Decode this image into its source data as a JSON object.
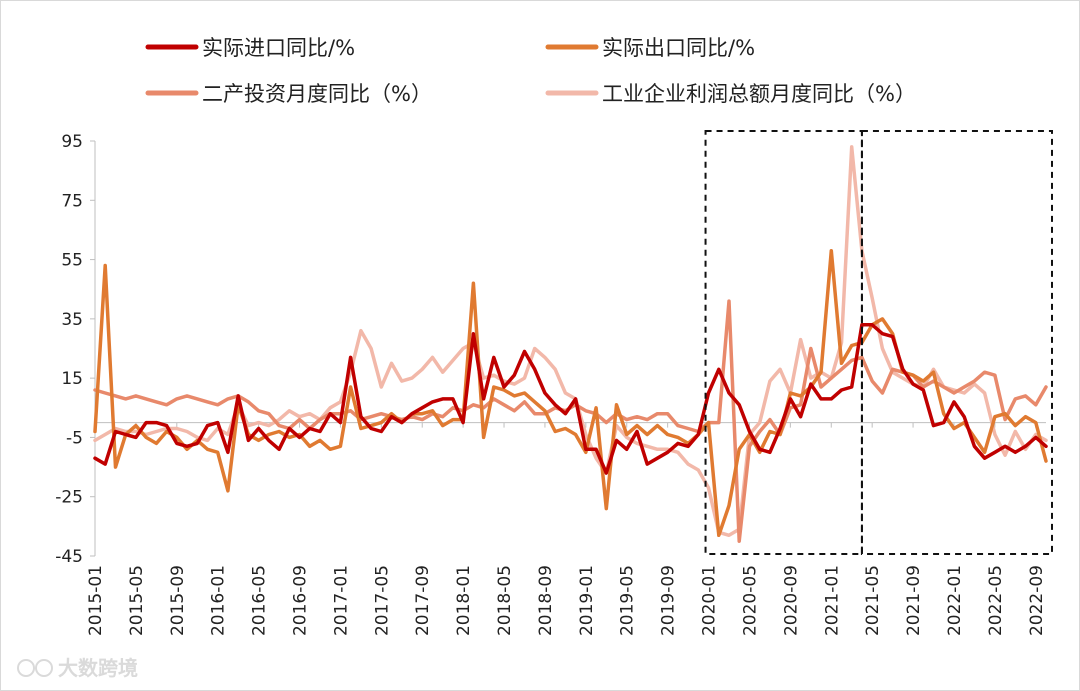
{
  "chart_data": {
    "type": "line",
    "title": "",
    "xlabel": "",
    "ylabel": "",
    "ylim": [
      -45,
      95
    ],
    "yticks": [
      95,
      75,
      55,
      35,
      15,
      -5,
      -25,
      -45
    ],
    "grid": false,
    "legend_position": "top",
    "categories": [
      "2015-01",
      "2015-02",
      "2015-03",
      "2015-04",
      "2015-05",
      "2015-06",
      "2015-07",
      "2015-08",
      "2015-09",
      "2015-10",
      "2015-11",
      "2015-12",
      "2016-01",
      "2016-02",
      "2016-03",
      "2016-04",
      "2016-05",
      "2016-06",
      "2016-07",
      "2016-08",
      "2016-09",
      "2016-10",
      "2016-11",
      "2016-12",
      "2017-01",
      "2017-02",
      "2017-03",
      "2017-04",
      "2017-05",
      "2017-06",
      "2017-07",
      "2017-08",
      "2017-09",
      "2017-10",
      "2017-11",
      "2017-12",
      "2018-01",
      "2018-02",
      "2018-03",
      "2018-04",
      "2018-05",
      "2018-06",
      "2018-07",
      "2018-08",
      "2018-09",
      "2018-10",
      "2018-11",
      "2018-12",
      "2019-01",
      "2019-02",
      "2019-03",
      "2019-04",
      "2019-05",
      "2019-06",
      "2019-07",
      "2019-08",
      "2019-09",
      "2019-10",
      "2019-11",
      "2019-12",
      "2020-01",
      "2020-02",
      "2020-03",
      "2020-04",
      "2020-05",
      "2020-06",
      "2020-07",
      "2020-08",
      "2020-09",
      "2020-10",
      "2020-11",
      "2020-12",
      "2021-01",
      "2021-02",
      "2021-03",
      "2021-04",
      "2021-05",
      "2021-06",
      "2021-07",
      "2021-08",
      "2021-09",
      "2021-10",
      "2021-11",
      "2021-12",
      "2022-01",
      "2022-02",
      "2022-03",
      "2022-04",
      "2022-05",
      "2022-06",
      "2022-07",
      "2022-08",
      "2022-09",
      "2022-10"
    ],
    "tick_labels": [
      "2015-01",
      "2015-05",
      "2015-09",
      "2016-01",
      "2016-05",
      "2016-09",
      "2017-01",
      "2017-05",
      "2017-09",
      "2018-01",
      "2018-05",
      "2018-09",
      "2019-01",
      "2019-05",
      "2019-09",
      "2020-01",
      "2020-05",
      "2020-09",
      "2021-01",
      "2021-05",
      "2021-09",
      "2022-01",
      "2022-05",
      "2022-09"
    ],
    "series": [
      {
        "name": "实际进口同比/%",
        "color": "#c00000",
        "values": [
          -12,
          -14,
          -3,
          -4,
          -5,
          0,
          0,
          -1,
          -7,
          -8,
          -7,
          -1,
          0,
          -10,
          9,
          -6,
          -2,
          -6,
          -9,
          -2,
          -5,
          -2,
          -3,
          3,
          0,
          22,
          2,
          -2,
          -3,
          2,
          0,
          3,
          5,
          7,
          8,
          8,
          0,
          30,
          8,
          22,
          12,
          16,
          24,
          18,
          10,
          6,
          3,
          8,
          -9,
          -9,
          -17,
          -6,
          -9,
          -3,
          -14,
          -12,
          -10,
          -7,
          -8,
          -4,
          10,
          18,
          10,
          6,
          -3,
          -9,
          -10,
          -2,
          8,
          2,
          13,
          8,
          8,
          11,
          12,
          33,
          33,
          30,
          29,
          18,
          13,
          11,
          -1,
          0,
          7,
          2,
          -8,
          -12,
          -10,
          -8,
          -10,
          -8,
          -5,
          -8
        ]
      },
      {
        "name": "实际出口同比/%",
        "color": "#e07a31",
        "values": [
          -3,
          53,
          -15,
          -4,
          -1,
          -5,
          -7,
          -3,
          -5,
          -9,
          -6,
          -9,
          -10,
          -23,
          6,
          -4,
          -6,
          -4,
          -3,
          -5,
          -4,
          -8,
          -6,
          -9,
          -8,
          12,
          -2,
          -1,
          0,
          3,
          0,
          3,
          3,
          4,
          -1,
          1,
          1,
          47,
          -5,
          12,
          11,
          9,
          10,
          7,
          4,
          -3,
          -2,
          -4,
          -10,
          5,
          -29,
          6,
          -4,
          -1,
          -4,
          -1,
          -4,
          -5,
          -7,
          -4,
          0,
          -38,
          -28,
          -9,
          -4,
          -10,
          -3,
          -4,
          10,
          9,
          12,
          17,
          58,
          20,
          26,
          27,
          33,
          35,
          30,
          17,
          16,
          14,
          17,
          3,
          -2,
          0,
          -5,
          -10,
          2,
          3,
          -1,
          2,
          0,
          -13
        ]
      },
      {
        "name": "二产投资月度同比（%）",
        "color": "#e8896b",
        "values": [
          11,
          10,
          9,
          8,
          9,
          8,
          7,
          6,
          8,
          9,
          8,
          7,
          6,
          8,
          9,
          7,
          4,
          3,
          -1,
          -2,
          1,
          -2,
          1,
          3,
          3,
          4,
          1,
          2,
          3,
          2,
          1,
          2,
          1,
          3,
          2,
          5,
          4,
          6,
          5,
          8,
          6,
          4,
          7,
          3,
          3,
          5,
          4,
          6,
          4,
          3,
          0,
          3,
          1,
          2,
          1,
          3,
          3,
          -1,
          -2,
          -3,
          0,
          0,
          41,
          -40,
          -8,
          -3,
          1,
          -4,
          5,
          6,
          25,
          12,
          15,
          18,
          21,
          22,
          14,
          10,
          18,
          17,
          16,
          12,
          14,
          12,
          10,
          12,
          14,
          17,
          16,
          1,
          8,
          9,
          6,
          12
        ]
      },
      {
        "name": "工业企业利润总额月度同比（%）",
        "color": "#f2b8a9",
        "values": [
          -6,
          -4,
          -2,
          -3,
          -3,
          -4,
          -3,
          -2,
          -2,
          -3,
          -5,
          -6,
          -2,
          -4,
          6,
          -1,
          0,
          -1,
          1,
          4,
          2,
          3,
          1,
          5,
          7,
          17,
          31,
          25,
          12,
          20,
          14,
          15,
          18,
          22,
          17,
          21,
          25,
          27,
          15,
          16,
          14,
          13,
          15,
          25,
          22,
          18,
          10,
          8,
          -4,
          -12,
          -17,
          -1,
          -5,
          -7,
          -8,
          -9,
          -9,
          -10,
          -14,
          -16,
          -22,
          -37,
          -38,
          -36,
          -4,
          0,
          14,
          18,
          10,
          28,
          15,
          17,
          15,
          27,
          93,
          58,
          42,
          25,
          17,
          15,
          13,
          12,
          18,
          12,
          11,
          10,
          13,
          10,
          -4,
          -11,
          -3,
          -9,
          -4,
          -6
        ]
      }
    ],
    "annotations": [
      {
        "type": "dashed-box",
        "from": "2020-01",
        "to": "2021-04"
      },
      {
        "type": "dashed-box",
        "from": "2021-04",
        "to": "2022-10"
      }
    ]
  },
  "legend": {
    "items": [
      {
        "label": "实际进口同比/%",
        "color": "#c00000"
      },
      {
        "label": "实际出口同比/%",
        "color": "#e07a31"
      },
      {
        "label": "二产投资月度同比（%）",
        "color": "#e8896b"
      },
      {
        "label": "工业企业利润总额月度同比（%）",
        "color": "#f2b8a9"
      }
    ]
  },
  "watermark": {
    "text": "大数跨境"
  }
}
